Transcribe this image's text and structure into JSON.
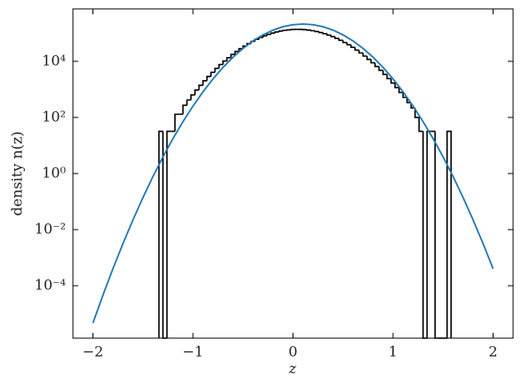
{
  "chart_data": {
    "type": "histogram",
    "xlabel": "z",
    "ylabel": "density n(z)",
    "xlim": [
      -2.2,
      2.2
    ],
    "ylim": [
      1.35e-06,
      740000.0
    ],
    "yscale": "log",
    "xticks": [
      {
        "value": -2,
        "label": "−2"
      },
      {
        "value": -1,
        "label": "−1"
      },
      0,
      1,
      2
    ],
    "yticks": [
      {
        "value": 0.0001,
        "label": "10⁻⁴"
      },
      {
        "value": 0.01,
        "label": "10⁻²"
      },
      {
        "value": 1,
        "label": "10⁰"
      },
      {
        "value": 100,
        "label": "10²"
      },
      {
        "value": 10000,
        "label": "10⁴"
      }
    ],
    "color": "#000000",
    "bins": [
      -1.34,
      -1.3,
      -1.26,
      -1.22,
      -1.18,
      -1.14,
      -1.1,
      -1.06,
      -1.02,
      -0.98,
      -0.94,
      -0.9,
      -0.86,
      -0.82,
      -0.78,
      -0.74,
      -0.7,
      -0.66,
      -0.62,
      -0.58,
      -0.54,
      -0.5,
      -0.46,
      -0.42,
      -0.38,
      -0.34,
      -0.3,
      -0.26,
      -0.22,
      -0.18,
      -0.14,
      -0.1,
      -0.06,
      -0.02,
      0.02,
      0.06,
      0.1,
      0.14,
      0.18,
      0.22,
      0.26,
      0.3,
      0.34,
      0.38,
      0.42,
      0.46,
      0.5,
      0.54,
      0.58,
      0.62,
      0.66,
      0.7,
      0.74,
      0.78,
      0.82,
      0.86,
      0.9,
      0.94,
      0.98,
      1.02,
      1.06,
      1.1,
      1.14,
      1.18,
      1.22,
      1.26,
      1.3,
      1.34,
      1.38,
      1.42,
      1.46,
      1.5,
      1.54,
      1.58
    ],
    "counts": [
      32,
      0,
      32,
      32,
      130,
      130,
      271,
      418,
      635,
      948,
      1397,
      2023,
      2891,
      4057,
      5610,
      7638,
      10233,
      13521,
      17540,
      22440,
      28250,
      35060,
      42760,
      51400,
      60810,
      70790,
      81100,
      91580,
      101800,
      111400,
      119900,
      127100,
      132700,
      136400,
      138000,
      137400,
      134800,
      130100,
      123600,
      115800,
      106600,
      96800,
      86300,
      75900,
      65700,
      56000,
      46950,
      38810,
      31540,
      25230,
      19890,
      15420,
      11780,
      8860,
      6560,
      4780,
      3430,
      2420,
      1686,
      1153,
      778,
      516,
      337,
      217,
      100,
      32,
      0,
      32,
      32,
      0,
      0,
      0,
      32
    ],
    "overlay": {
      "type": "line",
      "color": "#1f77b4",
      "x": [
        -2.0,
        -1.9,
        -1.8,
        -1.7,
        -1.6,
        -1.5,
        -1.4,
        -1.3,
        -1.2,
        -1.1,
        -1.0,
        -0.9,
        -0.8,
        -0.7,
        -0.6,
        -0.5,
        -0.4,
        -0.3,
        -0.2,
        -0.1,
        0.0,
        0.1,
        0.2,
        0.3,
        0.4,
        0.5,
        0.6,
        0.7,
        0.8,
        0.9,
        1.0,
        1.1,
        1.2,
        1.3,
        1.4,
        1.5,
        1.6,
        1.7,
        1.8,
        1.9,
        2.0
      ],
      "values": [
        4.69e-06,
        4.59e-05,
        0.000403,
        0.00316,
        0.0221,
        0.139,
        0.78,
        3.92,
        17.6,
        70.8,
        254,
        818,
        2356,
        6067,
        14000,
        28840,
        53200,
        87700,
        129400,
        171000,
        202300,
        213800,
        202300,
        171000,
        129400,
        87700,
        53200,
        28840,
        14000,
        6067,
        2356,
        818,
        254,
        70.8,
        17.6,
        3.92,
        0.78,
        0.139,
        0.0221,
        0.00316,
        0.000403
      ]
    }
  }
}
